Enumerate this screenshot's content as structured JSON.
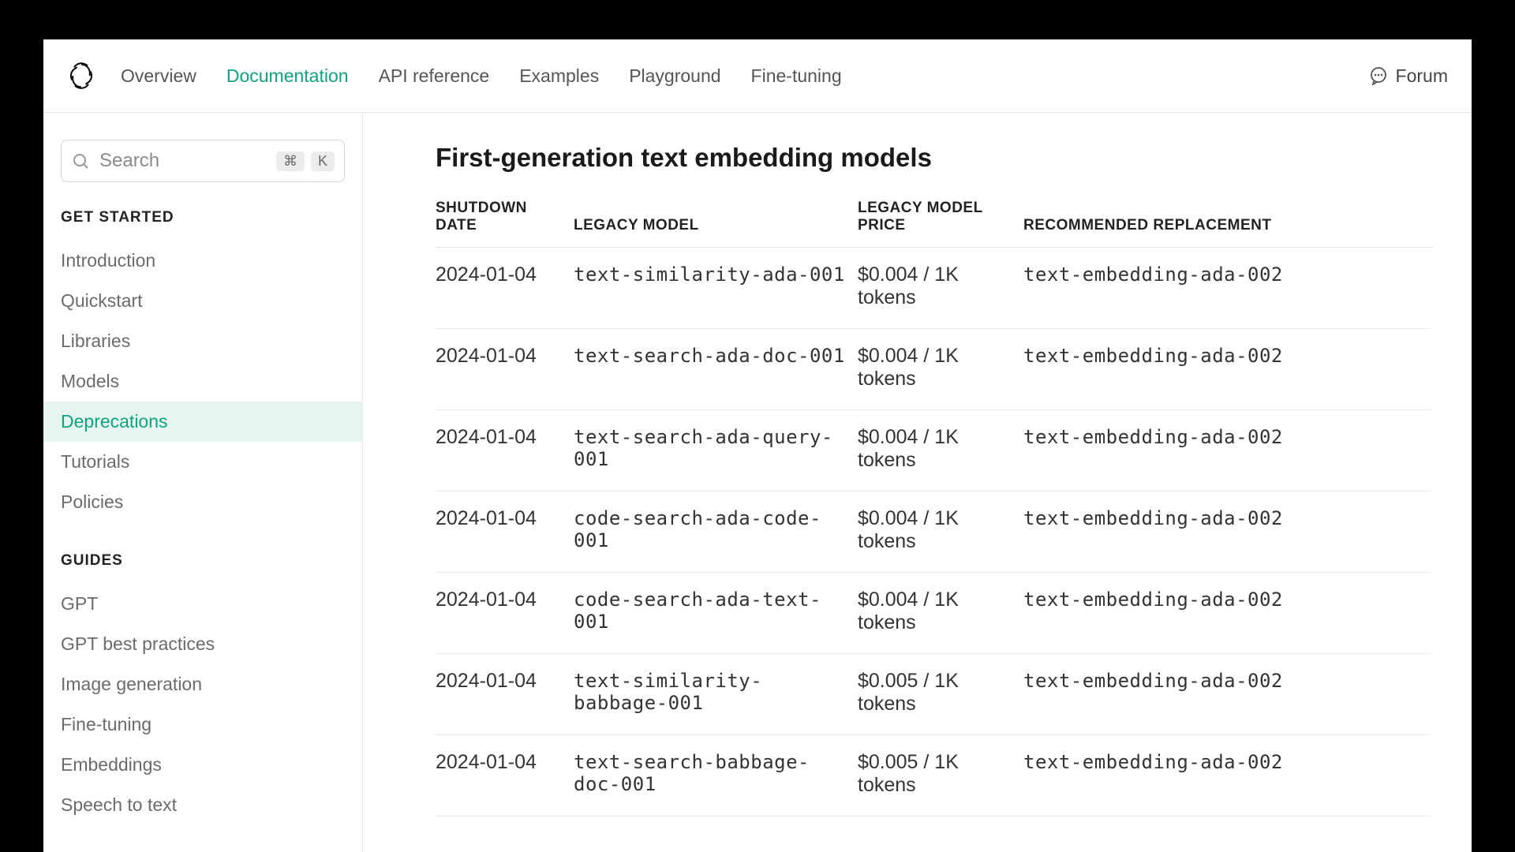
{
  "colors": {
    "accent": "#10a37f",
    "bg": "#ffffff",
    "frame_bg": "#000000",
    "text": "#333333",
    "muted": "#6b6b6b",
    "border": "#e8e8e8",
    "active_bg": "#e6f5f0"
  },
  "nav": {
    "items": [
      {
        "label": "Overview",
        "active": false
      },
      {
        "label": "Documentation",
        "active": true
      },
      {
        "label": "API reference",
        "active": false
      },
      {
        "label": "Examples",
        "active": false
      },
      {
        "label": "Playground",
        "active": false
      },
      {
        "label": "Fine-tuning",
        "active": false
      }
    ],
    "forum_label": "Forum"
  },
  "search": {
    "placeholder": "Search",
    "kbd_mod": "⌘",
    "kbd_key": "K"
  },
  "sidebar": {
    "sections": [
      {
        "label": "GET STARTED",
        "items": [
          {
            "label": "Introduction",
            "active": false
          },
          {
            "label": "Quickstart",
            "active": false
          },
          {
            "label": "Libraries",
            "active": false
          },
          {
            "label": "Models",
            "active": false
          },
          {
            "label": "Deprecations",
            "active": true
          },
          {
            "label": "Tutorials",
            "active": false
          },
          {
            "label": "Policies",
            "active": false
          }
        ]
      },
      {
        "label": "GUIDES",
        "items": [
          {
            "label": "GPT",
            "active": false
          },
          {
            "label": "GPT best practices",
            "active": false
          },
          {
            "label": "Image generation",
            "active": false
          },
          {
            "label": "Fine-tuning",
            "active": false
          },
          {
            "label": "Embeddings",
            "active": false
          },
          {
            "label": "Speech to text",
            "active": false
          }
        ]
      }
    ]
  },
  "main": {
    "heading": "First-generation text embedding models",
    "table": {
      "columns": [
        "SHUTDOWN DATE",
        "LEGACY MODEL",
        "LEGACY MODEL PRICE",
        "RECOMMENDED REPLACEMENT"
      ],
      "column_classes": [
        "col-date",
        "col-model",
        "col-price",
        "col-rec"
      ],
      "mono_columns": [
        false,
        true,
        false,
        true
      ],
      "rows": [
        [
          "2024-01-04",
          "text-similarity-ada-001",
          "$0.004 / 1K tokens",
          "text-embedding-ada-002"
        ],
        [
          "2024-01-04",
          "text-search-ada-doc-001",
          "$0.004 / 1K tokens",
          "text-embedding-ada-002"
        ],
        [
          "2024-01-04",
          "text-search-ada-query-001",
          "$0.004 / 1K tokens",
          "text-embedding-ada-002"
        ],
        [
          "2024-01-04",
          "code-search-ada-code-001",
          "$0.004 / 1K tokens",
          "text-embedding-ada-002"
        ],
        [
          "2024-01-04",
          "code-search-ada-text-001",
          "$0.004 / 1K tokens",
          "text-embedding-ada-002"
        ],
        [
          "2024-01-04",
          "text-similarity-babbage-001",
          "$0.005 / 1K tokens",
          "text-embedding-ada-002"
        ],
        [
          "2024-01-04",
          "text-search-babbage-doc-001",
          "$0.005 / 1K tokens",
          "text-embedding-ada-002"
        ]
      ]
    }
  }
}
